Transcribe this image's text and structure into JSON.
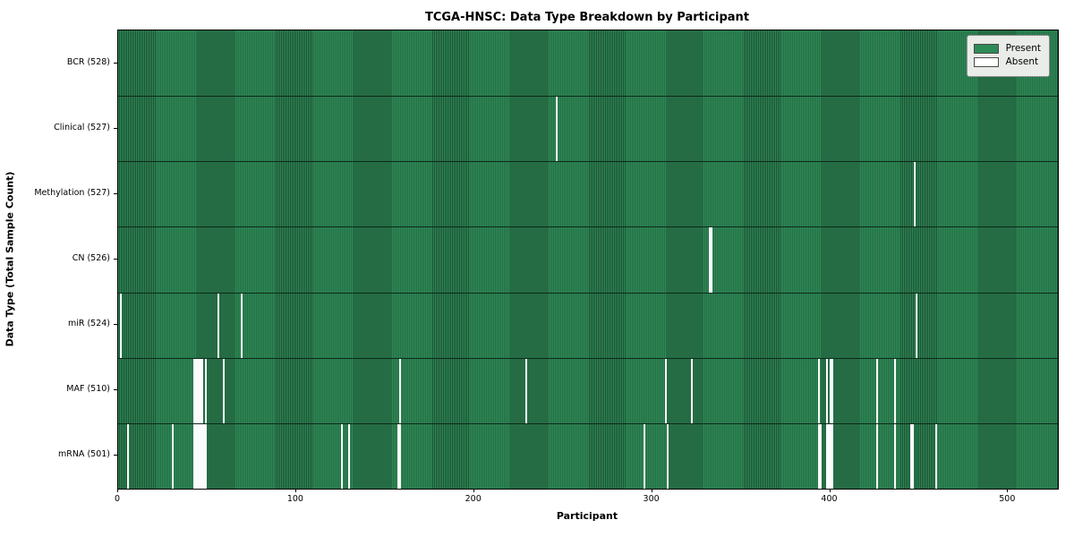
{
  "chart_data": {
    "type": "heatmap",
    "title": "TCGA-HNSC: Data Type Breakdown by Participant",
    "xlabel": "Participant",
    "ylabel": "Data Type (Total Sample Count)",
    "xlim": [
      0,
      528
    ],
    "x_ticks": [
      0,
      100,
      200,
      300,
      400,
      500
    ],
    "total_participants": 528,
    "grid": false,
    "legend_position": "upper right",
    "legend": [
      {
        "label": "Present",
        "color": "#2e8b57"
      },
      {
        "label": "Absent",
        "color": "#ffffff"
      }
    ],
    "rows": [
      {
        "label": "BCR (528)",
        "data_type": "BCR",
        "count": 528,
        "absent_participants": []
      },
      {
        "label": "Clinical (527)",
        "data_type": "Clinical",
        "count": 527,
        "absent_participants": [
          246
        ]
      },
      {
        "label": "Methylation (527)",
        "data_type": "Methylation",
        "count": 527,
        "absent_participants": [
          447
        ]
      },
      {
        "label": "CN (526)",
        "data_type": "CN",
        "count": 526,
        "absent_participants": [
          332,
          333
        ]
      },
      {
        "label": "miR (524)",
        "data_type": "miR",
        "count": 524,
        "absent_participants": [
          1,
          56,
          69,
          448
        ]
      },
      {
        "label": "MAF (510)",
        "data_type": "MAF",
        "count": 510,
        "absent_participants": [
          42,
          43,
          44,
          45,
          46,
          47,
          49,
          59,
          158,
          229,
          307,
          322,
          393,
          398,
          400,
          401,
          426,
          436
        ]
      },
      {
        "label": "mRNA (501)",
        "data_type": "mRNA",
        "count": 501,
        "absent_participants": [
          5,
          30,
          42,
          43,
          44,
          45,
          46,
          47,
          48,
          49,
          125,
          129,
          157,
          158,
          295,
          308,
          393,
          394,
          398,
          399,
          400,
          401,
          426,
          436,
          445,
          446,
          459
        ]
      }
    ]
  }
}
